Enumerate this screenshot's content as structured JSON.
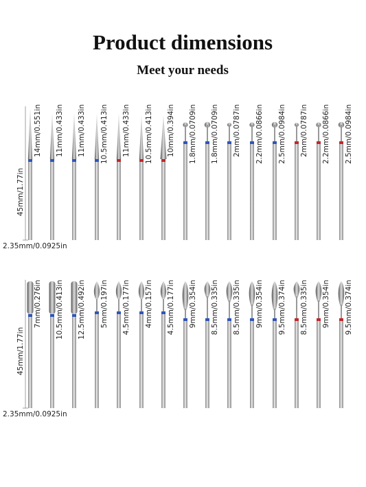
{
  "title": "Product dimensions",
  "subtitle": "Meet your needs",
  "rows": [
    {
      "length_label": "45mm/1.77in",
      "diameter_label": "2.35mm/0.0925in",
      "bits": [
        {
          "label": "14mm/0.551in"
        },
        {
          "label": "11mm/0.433in"
        },
        {
          "label": "11mm/0.433in"
        },
        {
          "label": "10.5mm/0.413in"
        },
        {
          "label": "11mm/0.433in"
        },
        {
          "label": "10.5mm/0.413in"
        },
        {
          "label": "10mm/0.394in"
        },
        {
          "label": "1.8mm/0.0709in"
        },
        {
          "label": "1.8mm/0.0709in"
        },
        {
          "label": "2mm/0.0787in"
        },
        {
          "label": "2.2mm/0.0866in"
        },
        {
          "label": "2.5mm/0.0984in"
        },
        {
          "label": "2mm/0.0787in"
        },
        {
          "label": "2.2mm/0.0866in"
        },
        {
          "label": "2.5mm/0.0984in"
        }
      ]
    },
    {
      "length_label": "45mm/1.77in",
      "diameter_label": "2.35mm/0.0925in",
      "bits": [
        {
          "label": "7mm/0.276in"
        },
        {
          "label": "10.5mm/0.413in"
        },
        {
          "label": "12.5mm/0.492in"
        },
        {
          "label": "5mm/0.197in"
        },
        {
          "label": "4.5mm/0.177in"
        },
        {
          "label": "4mm/0.157in"
        },
        {
          "label": "4.5mm/0.177in"
        },
        {
          "label": "9mm/0.354in"
        },
        {
          "label": "8.5mm/0.335in"
        },
        {
          "label": "8.5mm/0.335in"
        },
        {
          "label": "9mm/0.354in"
        },
        {
          "label": "9.5mm/0.374in"
        },
        {
          "label": "8.5mm/0.335in"
        },
        {
          "label": "9mm/0.354in"
        },
        {
          "label": "9.5mm/0.374in"
        }
      ]
    }
  ]
}
